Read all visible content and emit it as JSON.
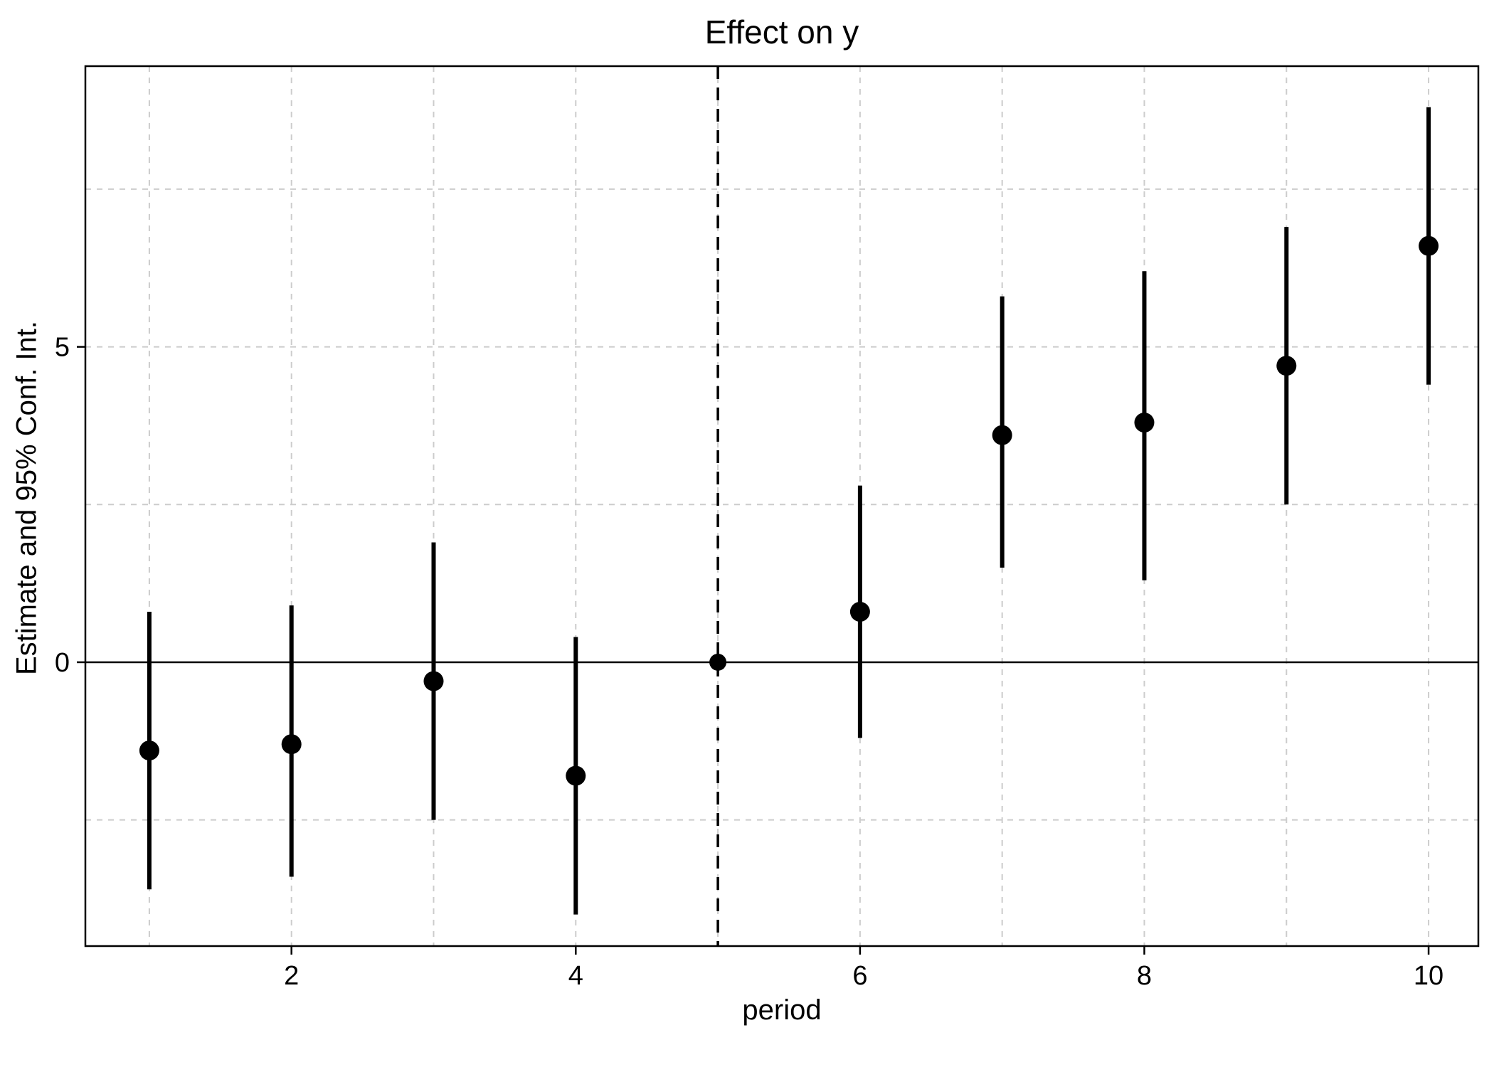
{
  "chart_data": {
    "type": "scatter",
    "title": "Effect on y",
    "xlabel": "period",
    "ylabel": "Estimate and 95% Conf. Int.",
    "x": [
      1,
      2,
      3,
      4,
      5,
      6,
      7,
      8,
      9,
      10
    ],
    "estimates": [
      -1.4,
      -1.3,
      -0.3,
      -1.8,
      0,
      0.8,
      3.6,
      3.8,
      4.7,
      6.6
    ],
    "ci_low": [
      -3.6,
      -3.4,
      -2.5,
      -4.0,
      0,
      -1.2,
      1.5,
      1.3,
      2.5,
      4.4
    ],
    "ci_high": [
      0.8,
      0.9,
      1.9,
      0.4,
      0,
      2.8,
      5.8,
      6.2,
      6.9,
      8.8
    ],
    "reference_period": 5,
    "xlim": [
      0.55,
      10.35
    ],
    "ylim": [
      -4.5,
      9.45
    ],
    "x_ticks": [
      2,
      4,
      6,
      8,
      10
    ],
    "y_ticks": [
      0,
      5
    ],
    "x_grid": [
      1,
      2,
      3,
      4,
      5,
      6,
      7,
      8,
      9,
      10
    ],
    "y_grid": [
      -2.5,
      0,
      2.5,
      5,
      7.5
    ],
    "zero_line": 0,
    "grid": true,
    "legend": "none",
    "colors": {
      "point": "#000000",
      "ci": "#000000",
      "grid": "#cccccc",
      "ref_line": "#000000",
      "axis": "#000000",
      "background": "#ffffff"
    }
  }
}
